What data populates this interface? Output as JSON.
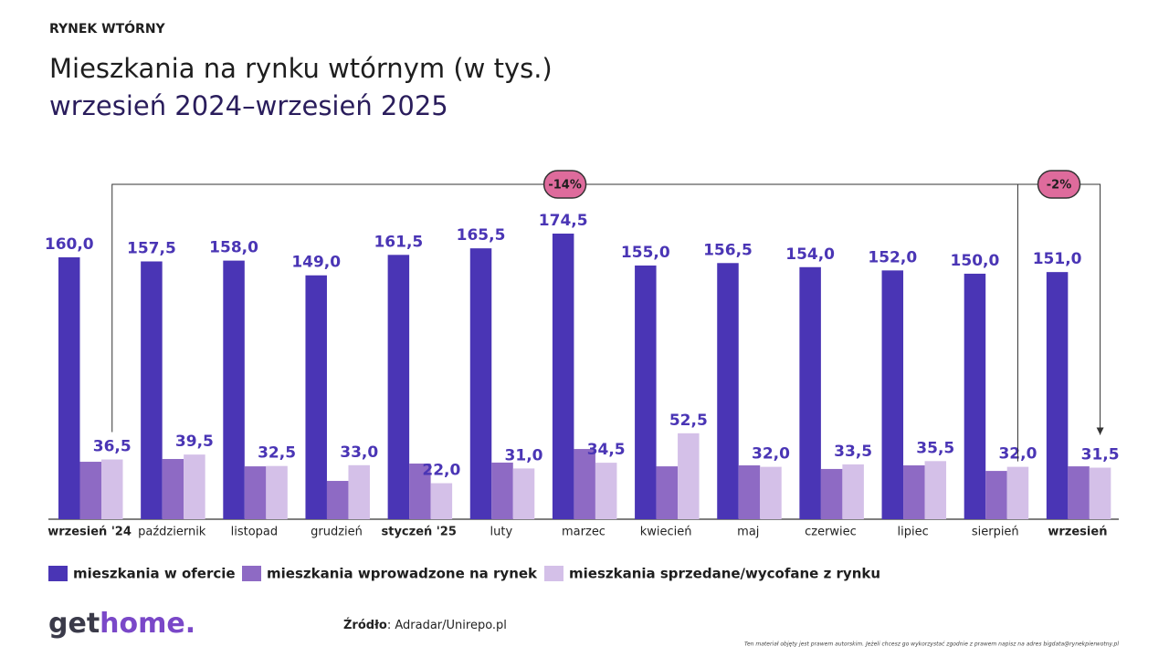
{
  "header": "RYNEK WTÓRNY",
  "logo": {
    "part1": "get",
    "part2": "home."
  },
  "source": {
    "label": "Źródło",
    "text": ": Adradar/Unirepo.pl"
  },
  "footnote": "Ten materiał objęty jest prawem autorskim. Jeżeli chcesz go wykorzystać zgodnie z prawem napisz na adres bigdata@rynekpierwotny.pl",
  "chart_data": {
    "type": "bar",
    "title": "Mieszkania na rynku wtórnym (w tys.)",
    "subtitle": "wrzesień 2024–wrzesień 2025",
    "categories": [
      "wrzesień '24",
      "październik",
      "listopad",
      "grudzień",
      "styczeń '25",
      "luty",
      "marzec",
      "kwiecień",
      "maj",
      "czerwiec",
      "lipiec",
      "sierpień",
      "wrzesień"
    ],
    "highlight_categories": [
      0,
      4,
      12
    ],
    "series": [
      {
        "name": "mieszkania w ofercie",
        "color": "#4a35b5",
        "values": [
          160,
          157.5,
          158,
          149,
          161.5,
          165.5,
          174.5,
          155,
          156.5,
          154,
          152,
          150,
          151
        ],
        "value_labels": [
          "160,0",
          "157,5",
          "158,0",
          "149,0",
          "161,5",
          "165,5",
          "174,5",
          "155,0",
          "156,5",
          "154,0",
          "152,0",
          "150,0",
          "151,0"
        ]
      },
      {
        "name": "mieszkania wprowadzone na rynek",
        "color": "#8e6ac4",
        "values": [
          35.1,
          36.8,
          32.3,
          23.4,
          34,
          34.6,
          42.9,
          32.3,
          32.9,
          30.7,
          32.9,
          29.5,
          32.3
        ]
      },
      {
        "name": "mieszkania sprzedane/wycofane z rynku",
        "color": "#d4c0e8",
        "values": [
          36.5,
          39.5,
          32.5,
          33,
          22,
          31,
          34.5,
          52.5,
          32,
          33.5,
          35.5,
          32,
          31.5
        ],
        "value_labels": [
          "36,5",
          "39,5",
          "32,5",
          "33,0",
          "22,0",
          "31,0",
          "34,5",
          "52,5",
          "32,0",
          "33,5",
          "35,5",
          "32,0",
          "31,5"
        ]
      }
    ],
    "annotations": [
      {
        "text": "-14%"
      },
      {
        "text": "-2%"
      }
    ]
  }
}
